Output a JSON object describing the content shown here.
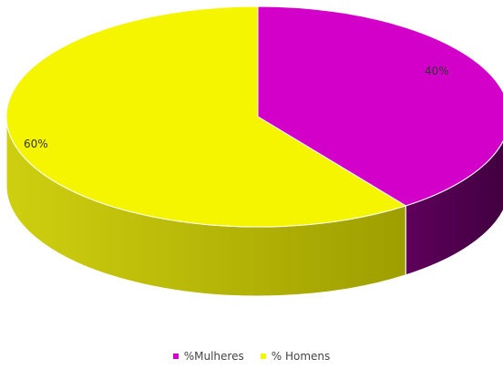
{
  "chart_data": {
    "type": "pie",
    "categories": [
      "%Mulheres",
      "% Homens"
    ],
    "values": [
      40,
      60
    ],
    "data_labels": [
      "40%",
      "60%"
    ],
    "colors": [
      "#d200c8",
      "#f5f500"
    ],
    "side_colors": [
      "#4b0049",
      "#b7b700"
    ],
    "legend": [
      "%Mulheres",
      "% Homens"
    ],
    "legend_position": "bottom",
    "style": "3d"
  }
}
